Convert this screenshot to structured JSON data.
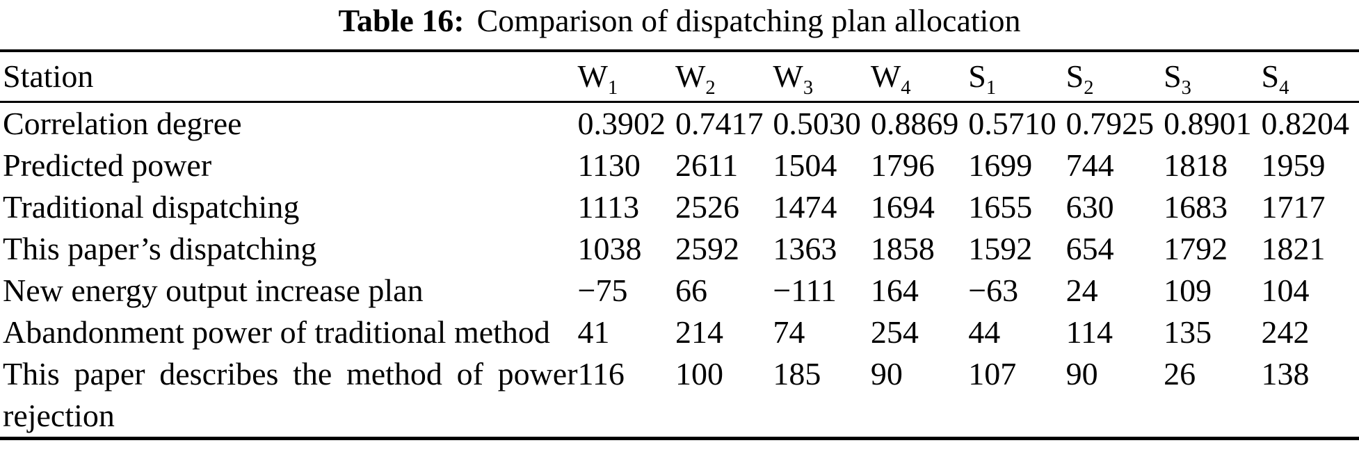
{
  "page": {
    "background_color": "#ffffff",
    "text_color": "#000000"
  },
  "caption": {
    "label": "Table 16:",
    "text": "Comparison of dispatching plan allocation"
  },
  "table": {
    "station_header": "Station",
    "columns": [
      {
        "base": "W",
        "sub": "1"
      },
      {
        "base": "W",
        "sub": "2"
      },
      {
        "base": "W",
        "sub": "3"
      },
      {
        "base": "W",
        "sub": "4"
      },
      {
        "base": "S",
        "sub": "1"
      },
      {
        "base": "S",
        "sub": "2"
      },
      {
        "base": "S",
        "sub": "3"
      },
      {
        "base": "S",
        "sub": "4"
      }
    ],
    "rows": [
      {
        "label": "Correlation degree",
        "values": [
          "0.3902",
          "0.7417",
          "0.5030",
          "0.8869",
          "0.5710",
          "0.7925",
          "0.8901",
          "0.8204"
        ]
      },
      {
        "label": "Predicted power",
        "values": [
          "1130",
          "2611",
          "1504",
          "1796",
          "1699",
          "744",
          "1818",
          "1959"
        ]
      },
      {
        "label": "Traditional dispatching",
        "values": [
          "1113",
          "2526",
          "1474",
          "1694",
          "1655",
          "630",
          "1683",
          "1717"
        ]
      },
      {
        "label": "This paper’s dispatching",
        "values": [
          "1038",
          "2592",
          "1363",
          "1858",
          "1592",
          "654",
          "1792",
          "1821"
        ]
      },
      {
        "label": "New energy output increase plan",
        "values": [
          "−75",
          "66",
          "−111",
          "164",
          "−63",
          "24",
          "109",
          "104"
        ]
      },
      {
        "label": "Abandonment power of traditional method",
        "values": [
          "41",
          "214",
          "74",
          "254",
          "44",
          "114",
          "135",
          "242"
        ]
      },
      {
        "label": "This paper describes the method of power rejection",
        "values": [
          "116",
          "100",
          "185",
          "90",
          "107",
          "90",
          "26",
          "138"
        ]
      }
    ]
  }
}
